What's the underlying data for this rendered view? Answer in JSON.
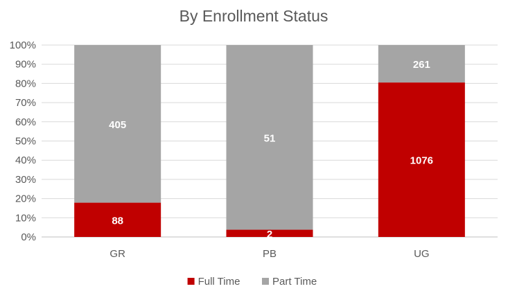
{
  "chart_data": {
    "type": "bar",
    "stacking": "percent",
    "title": "By Enrollment Status",
    "xlabel": "",
    "ylabel": "",
    "categories": [
      "GR",
      "PB",
      "UG"
    ],
    "series": [
      {
        "name": "Full Time",
        "values": [
          88,
          2,
          1076
        ],
        "color": "#C00000"
      },
      {
        "name": "Part Time",
        "values": [
          405,
          51,
          261
        ],
        "color": "#A5A5A5"
      }
    ],
    "yticks": [
      "0%",
      "10%",
      "20%",
      "30%",
      "40%",
      "50%",
      "60%",
      "70%",
      "80%",
      "90%",
      "100%"
    ],
    "ylim": [
      0,
      100
    ],
    "grid": true,
    "legend": "bottom"
  }
}
